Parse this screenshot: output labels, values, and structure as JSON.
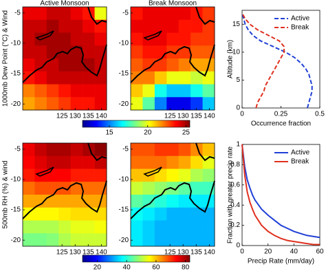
{
  "chart_data": [
    {
      "type": "heatmap",
      "title": "Active Monsoon",
      "ylabel": "1000mb Dew Point (°C) & Wind",
      "xlim": [
        110,
        142
      ],
      "ylim": [
        -21,
        -4
      ],
      "xticks": [
        125,
        130,
        135,
        140
      ],
      "yticks": [
        -5,
        -10,
        -15,
        -20
      ],
      "clim": [
        11.5,
        25.5
      ],
      "cticks": [
        15,
        20,
        25
      ],
      "values": [
        [
          24,
          24,
          24.5,
          24.5,
          24,
          23.5,
          20
        ],
        [
          24.5,
          24.5,
          25,
          24.5,
          24.5,
          24,
          23.5
        ],
        [
          24.5,
          25,
          25,
          25,
          24.5,
          24.5,
          24
        ],
        [
          24.5,
          24.5,
          25,
          25,
          25,
          24.5,
          24.5
        ],
        [
          24,
          24.5,
          24.5,
          25,
          25,
          25,
          24.5
        ],
        [
          23.5,
          24,
          24.5,
          24.5,
          24.5,
          24.5,
          24.5
        ],
        [
          22,
          22.5,
          23,
          23.5,
          24,
          24,
          24
        ],
        [
          21.5,
          22,
          22.5,
          23,
          23.5,
          23.5,
          24
        ]
      ]
    },
    {
      "type": "heatmap",
      "title": "Break Monsoon",
      "xlim": [
        110,
        142
      ],
      "ylim": [
        -21,
        -4
      ],
      "xticks": [
        125,
        130,
        135,
        140
      ],
      "yticks": [
        -5,
        -10,
        -15,
        -20
      ],
      "clim": [
        11.5,
        25.5
      ],
      "values": [
        [
          23.5,
          24,
          24,
          24,
          24,
          23.5,
          23
        ],
        [
          24,
          24,
          24,
          24,
          23.5,
          23.5,
          23
        ],
        [
          23.5,
          24,
          24,
          23.5,
          23.5,
          23,
          23
        ],
        [
          23,
          23.5,
          23.5,
          23,
          23,
          22.5,
          22.5
        ],
        [
          22.5,
          23,
          23,
          22.5,
          22,
          21.5,
          21.5
        ],
        [
          22,
          22,
          21,
          20,
          20,
          19.5,
          20
        ],
        [
          21,
          20,
          17,
          16,
          16,
          17,
          18
        ],
        [
          20,
          18,
          15,
          13,
          13,
          14,
          16
        ]
      ]
    },
    {
      "type": "heatmap",
      "ylabel": "500mb RH (%) & wind",
      "xlim": [
        110,
        142
      ],
      "ylim": [
        -21,
        -4
      ],
      "xticks": [
        125,
        130,
        135,
        140
      ],
      "yticks": [
        -5,
        -10,
        -15,
        -20
      ],
      "clim": [
        10,
        83
      ],
      "cticks": [
        20,
        40,
        60,
        80
      ],
      "values": [
        [
          75,
          78,
          80,
          80,
          78,
          80,
          82
        ],
        [
          74,
          76,
          78,
          78,
          76,
          76,
          78
        ],
        [
          72,
          74,
          74,
          74,
          72,
          72,
          72
        ],
        [
          66,
          68,
          68,
          68,
          66,
          66,
          66
        ],
        [
          62,
          62,
          62,
          62,
          62,
          62,
          62
        ],
        [
          56,
          56,
          56,
          57,
          58,
          58,
          58
        ],
        [
          50,
          50,
          50,
          52,
          54,
          54,
          55
        ],
        [
          46,
          46,
          47,
          50,
          52,
          52,
          52
        ]
      ]
    },
    {
      "type": "heatmap",
      "xlim": [
        110,
        142
      ],
      "ylim": [
        -21,
        -4
      ],
      "xticks": [
        125,
        130,
        135,
        140
      ],
      "yticks": [
        -5,
        -10,
        -15,
        -20
      ],
      "clim": [
        10,
        83
      ],
      "values": [
        [
          68,
          68,
          70,
          70,
          68,
          64,
          60
        ],
        [
          66,
          66,
          66,
          64,
          62,
          58,
          54
        ],
        [
          60,
          60,
          58,
          56,
          54,
          50,
          48
        ],
        [
          52,
          50,
          48,
          46,
          44,
          42,
          42
        ],
        [
          44,
          42,
          40,
          38,
          36,
          36,
          36
        ],
        [
          38,
          36,
          34,
          32,
          32,
          32,
          32
        ],
        [
          36,
          34,
          32,
          32,
          32,
          32,
          32
        ],
        [
          36,
          34,
          32,
          32,
          32,
          32,
          32
        ]
      ]
    },
    {
      "type": "line",
      "xlabel": "Occurrence fraction",
      "ylabel": "Altitude (km)",
      "y": [
        0,
        1,
        2,
        3,
        4,
        5,
        6,
        7,
        8,
        9,
        10,
        11,
        12,
        13,
        14,
        15,
        16,
        17
      ],
      "series": [
        {
          "name": "Active",
          "color": "#1f3fd6",
          "linestyle": "dashed",
          "values": [
            0.42,
            0.43,
            0.44,
            0.45,
            0.45,
            0.44,
            0.43,
            0.41,
            0.38,
            0.34,
            0.28,
            0.2,
            0.12,
            0.07,
            0.04,
            0.02,
            0.01,
            0
          ]
        },
        {
          "name": "Break",
          "color": "#e0301e",
          "linestyle": "dashed",
          "values": [
            0.09,
            0.1,
            0.12,
            0.14,
            0.15,
            0.17,
            0.19,
            0.21,
            0.23,
            0.25,
            0.27,
            0.27,
            0.24,
            0.17,
            0.1,
            0.05,
            0.02,
            0
          ]
        }
      ],
      "xlim": [
        0,
        0.5
      ],
      "ylim": [
        0,
        17.5
      ],
      "xticks": [
        0,
        0.25,
        0.5
      ],
      "yticks": [
        0,
        5,
        10,
        15
      ],
      "legend": "upper right"
    },
    {
      "type": "line",
      "xlabel": "Precip Rate (mm/day)",
      "ylabel": "Fraction with greater precip rate",
      "x": [
        0,
        2,
        4,
        6,
        8,
        10,
        15,
        20,
        25,
        30,
        35,
        40,
        45,
        50,
        55,
        60
      ],
      "series": [
        {
          "name": "Active",
          "color": "#1f3fd6",
          "linestyle": "solid",
          "values": [
            1,
            0.78,
            0.65,
            0.57,
            0.5,
            0.45,
            0.36,
            0.3,
            0.25,
            0.2,
            0.17,
            0.14,
            0.12,
            0.1,
            0.09,
            0.08
          ]
        },
        {
          "name": "Break",
          "color": "#e0301e",
          "linestyle": "solid",
          "values": [
            1,
            0.7,
            0.53,
            0.43,
            0.36,
            0.3,
            0.2,
            0.14,
            0.1,
            0.07,
            0.05,
            0.04,
            0.03,
            0.02,
            0.01,
            0.01
          ]
        }
      ],
      "xlim": [
        0,
        60
      ],
      "ylim": [
        0,
        1
      ],
      "xticks": [
        0,
        20,
        40,
        60
      ],
      "yticks": [
        0,
        0.2,
        0.4,
        0.6,
        0.8,
        1
      ],
      "legend": "upper right"
    }
  ]
}
